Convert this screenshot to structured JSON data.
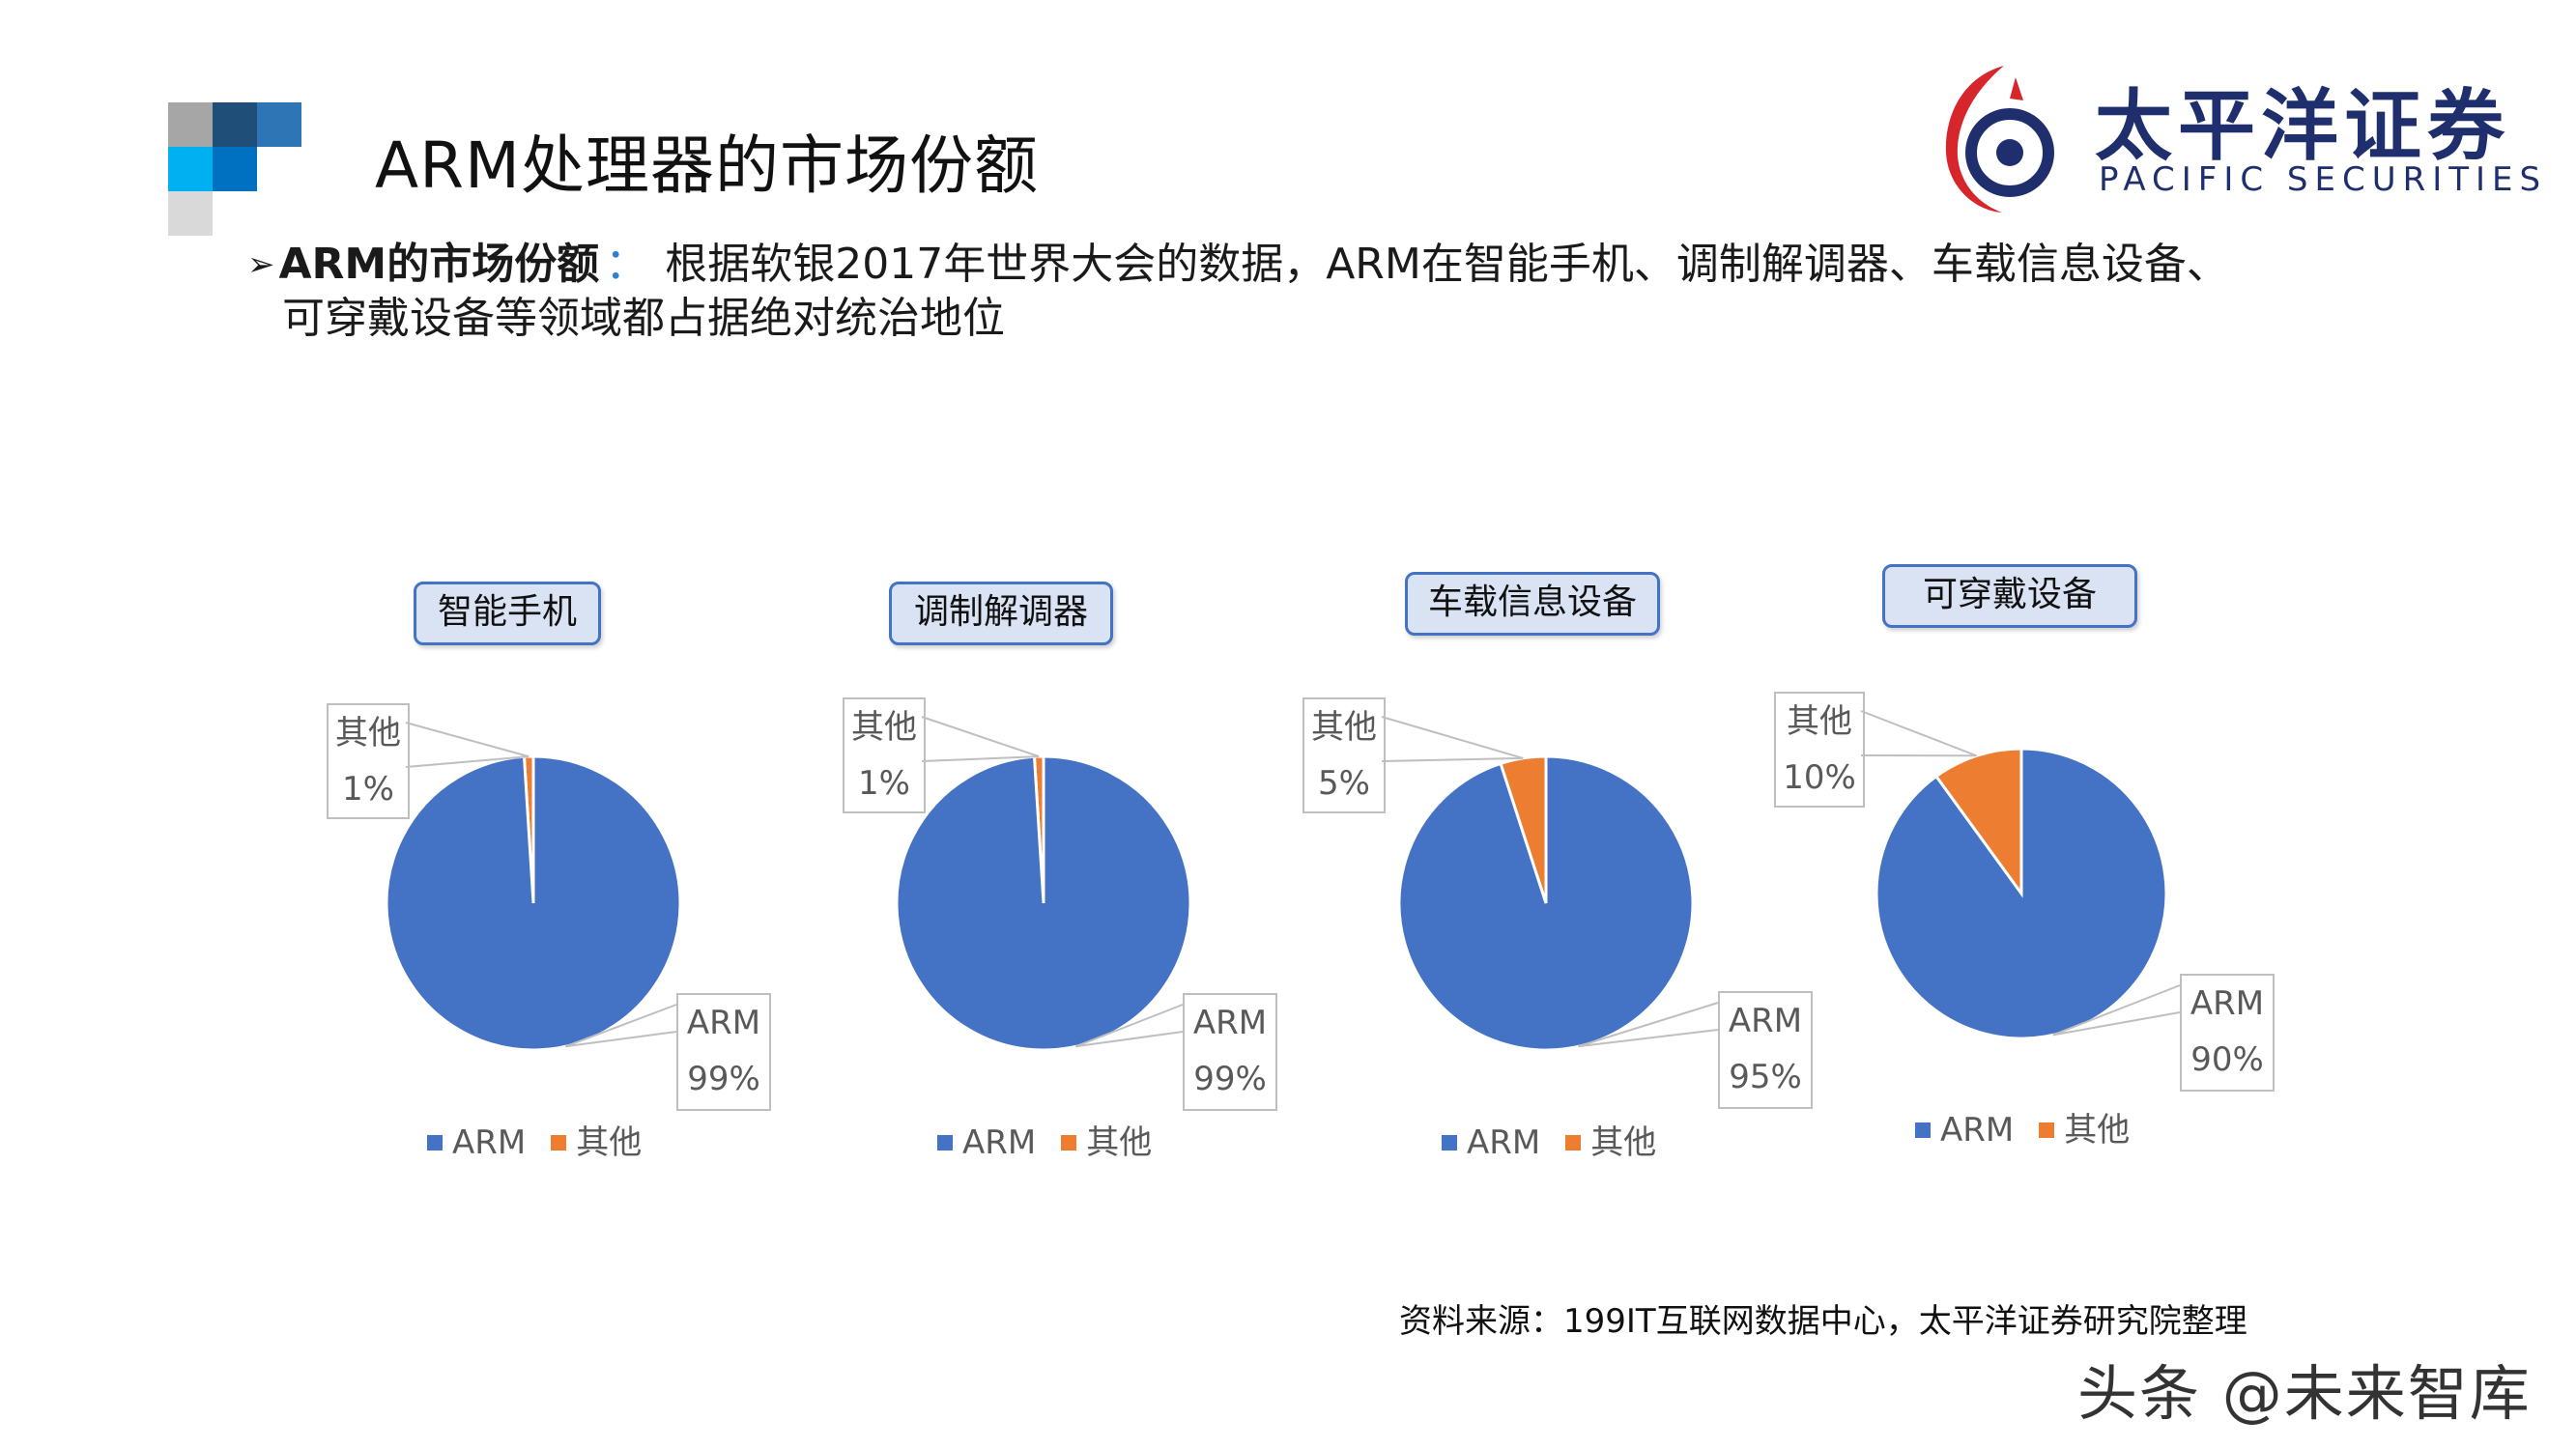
{
  "slide": {
    "title": "ARM处理器的市场份额",
    "bullet_head": "ARM的市场份额",
    "bullet_colon": "：",
    "bullet_line1": "根据软银2017年世界大会的数据，ARM在智能手机、调制解调器、车载信息设备、",
    "bullet_line2": "可穿戴设备等领域都占据绝对统治地位",
    "source": "资料来源：199IT互联网数据中心，太平洋证券研究院整理",
    "watermark": "头条 @未来智库"
  },
  "logo": {
    "cn": "太平洋证券",
    "en": "PACIFIC SECURITIES",
    "icon": "pacific-securities-logo-icon"
  },
  "colors": {
    "arm": "#4472c4",
    "other": "#ed7d31",
    "pill_bg": "#dae3f3",
    "pill_border": "#4472c4",
    "logo_red": "#d7262b",
    "logo_navy": "#1f2f6e"
  },
  "chart_data": [
    {
      "type": "pie",
      "title": "智能手机",
      "labels": [
        "ARM",
        "其他"
      ],
      "values": [
        99,
        1
      ],
      "display": [
        "99%",
        "1%"
      ],
      "legend": [
        "ARM",
        "其他"
      ]
    },
    {
      "type": "pie",
      "title": "调制解调器",
      "labels": [
        "ARM",
        "其他"
      ],
      "values": [
        99,
        1
      ],
      "display": [
        "99%",
        "1%"
      ],
      "legend": [
        "ARM",
        "其他"
      ]
    },
    {
      "type": "pie",
      "title": "车载信息设备",
      "labels": [
        "ARM",
        "其他"
      ],
      "values": [
        95,
        5
      ],
      "display": [
        "95%",
        "5%"
      ],
      "legend": [
        "ARM",
        "其他"
      ]
    },
    {
      "type": "pie",
      "title": "可穿戴设备",
      "labels": [
        "ARM",
        "其他"
      ],
      "values": [
        90,
        10
      ],
      "display": [
        "90%",
        "10%"
      ],
      "legend": [
        "ARM",
        "其他"
      ]
    }
  ]
}
